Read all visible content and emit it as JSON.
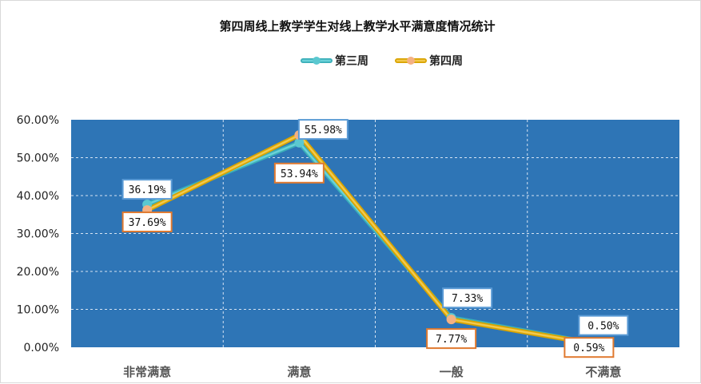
{
  "chart_data": {
    "type": "line",
    "title": "第四周线上教学学生对线上教学水平满意度情况统计",
    "categories": [
      "非常满意",
      "满意",
      "一般",
      "不满意"
    ],
    "ylim": [
      0,
      60
    ],
    "yticks": [
      "0.00%",
      "10.00%",
      "20.00%",
      "30.00%",
      "40.00%",
      "50.00%",
      "60.00%"
    ],
    "yunit": "%",
    "grid": true,
    "legend_position": "top",
    "plot_background": "#2e75b6",
    "series": [
      {
        "name": "第三周",
        "values": [
          37.69,
          53.94,
          7.77,
          0.59
        ],
        "labels": [
          "37.69%",
          "53.94%",
          "7.77%",
          "0.59%"
        ],
        "line_color": "#6ad1d8",
        "line_border": "#3aaeb8",
        "marker_color": "#5bc8d0",
        "label_border": "#e07a30"
      },
      {
        "name": "第四周",
        "values": [
          36.19,
          55.98,
          7.33,
          0.5
        ],
        "labels": [
          "36.19%",
          "55.98%",
          "7.33%",
          "0.50%"
        ],
        "line_color": "#f2c94c",
        "line_border": "#d9a300",
        "marker_color": "#f4b183",
        "label_border": "#5b9bd5"
      }
    ]
  }
}
